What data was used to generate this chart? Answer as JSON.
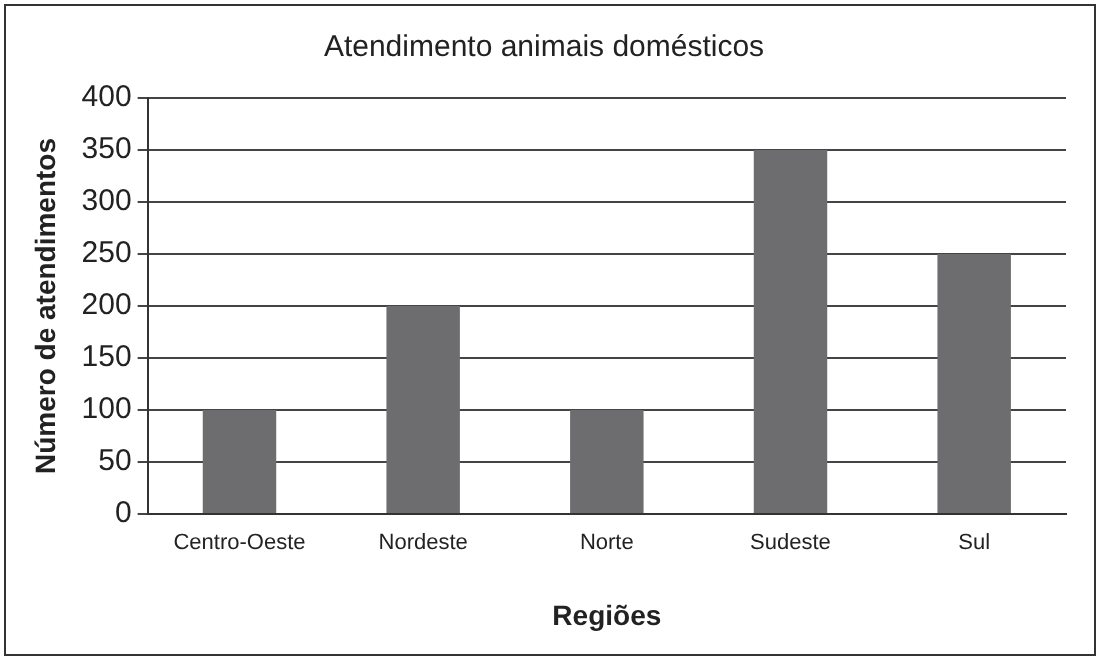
{
  "chart_data": {
    "type": "bar",
    "title": "Atendimento animais domésticos",
    "xlabel": "Regiões",
    "ylabel": "Número de atendimentos",
    "categories": [
      "Centro-Oeste",
      "Nordeste",
      "Norte",
      "Sudeste",
      "Sul"
    ],
    "values": [
      100,
      200,
      100,
      350,
      250
    ],
    "color": "#6d6d6f",
    "ylim": [
      0,
      400
    ],
    "yticks": [
      0,
      50,
      100,
      150,
      200,
      250,
      300,
      350,
      400
    ],
    "grid": "y"
  }
}
